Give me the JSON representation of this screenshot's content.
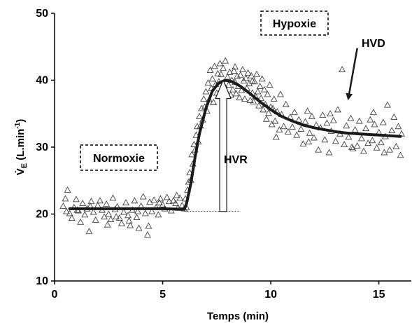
{
  "chart_data": {
    "type": "scatter",
    "xlabel": "Temps (min)",
    "ylabel": "V̇E (L.min⁻¹)",
    "ylabel_main": "V̇",
    "ylabel_sub": "E",
    "ylabel_unit": " (L.min",
    "ylabel_sup": "-1",
    "ylabel_close": ")",
    "xlim": [
      0,
      16.5
    ],
    "ylim": [
      10,
      50
    ],
    "x_ticks": [
      "0",
      "5",
      "10",
      "15"
    ],
    "y_ticks": [
      "10",
      "20",
      "30",
      "40",
      "50"
    ],
    "grid": false,
    "colors": {
      "line": "#1a1a1a",
      "markers": "#444444",
      "axis": "#000000"
    },
    "marker": "open-triangle",
    "annotations": {
      "normoxie": "Normoxie",
      "hypoxie": "Hypoxie",
      "hvr": "HVR",
      "hvd": "HVD"
    },
    "fit_line": {
      "x": [
        0.7,
        2.0,
        3.0,
        4.0,
        5.0,
        6.0,
        6.1,
        6.3,
        6.5,
        6.7,
        7.0,
        7.3,
        7.6,
        7.9,
        8.2,
        8.6,
        9.0,
        9.5,
        10.0,
        10.5,
        11.0,
        11.5,
        12.0,
        12.5,
        13.0,
        13.5,
        14.0,
        14.5,
        15.0,
        15.5,
        16.0
      ],
      "y": [
        20.8,
        20.8,
        20.8,
        20.8,
        20.8,
        20.7,
        21.5,
        24.5,
        28.5,
        32.0,
        35.8,
        38.4,
        39.6,
        40.0,
        39.8,
        39.1,
        38.1,
        36.8,
        35.6,
        34.6,
        33.9,
        33.3,
        32.9,
        32.6,
        32.3,
        32.1,
        32.0,
        31.9,
        31.8,
        31.7,
        31.6
      ]
    },
    "baseline": {
      "x": [
        6.0,
        8.6
      ],
      "y": 20.4
    },
    "hvr_arrow": {
      "x": 7.8,
      "y_from": 20.4,
      "y_to": 40.0
    },
    "hvd_arrow": {
      "x_from": 14.0,
      "y_from": 44.8,
      "x_to": 13.6,
      "y_to": 37.5
    },
    "series": [
      {
        "points": [
          [
            0.4,
            21.2
          ],
          [
            0.5,
            22.3
          ],
          [
            0.6,
            23.6
          ],
          [
            0.7,
            20.1
          ],
          [
            0.8,
            19.4
          ],
          [
            0.9,
            21.0
          ],
          [
            1.0,
            22.2
          ],
          [
            1.1,
            20.5
          ],
          [
            1.2,
            18.8
          ],
          [
            1.3,
            21.6
          ],
          [
            1.4,
            19.9
          ],
          [
            1.5,
            20.8
          ],
          [
            1.6,
            17.4
          ],
          [
            1.7,
            21.9
          ],
          [
            1.8,
            20.3
          ],
          [
            1.9,
            19.1
          ],
          [
            2.0,
            21.3
          ],
          [
            2.1,
            22.0
          ],
          [
            2.2,
            20.6
          ],
          [
            2.3,
            19.6
          ],
          [
            2.4,
            21.5
          ],
          [
            2.5,
            20.0
          ],
          [
            2.6,
            19.2
          ],
          [
            2.7,
            22.4
          ],
          [
            2.8,
            20.7
          ],
          [
            2.9,
            21.1
          ],
          [
            3.0,
            19.4
          ],
          [
            3.1,
            18.6
          ],
          [
            3.2,
            20.3
          ],
          [
            3.3,
            21.7
          ],
          [
            3.4,
            19.8
          ],
          [
            3.5,
            18.3
          ],
          [
            3.6,
            20.6
          ],
          [
            3.7,
            22.0
          ],
          [
            3.8,
            19.5
          ],
          [
            3.9,
            17.9
          ],
          [
            4.0,
            21.2
          ],
          [
            4.1,
            22.6
          ],
          [
            4.2,
            20.1
          ],
          [
            4.3,
            16.9
          ],
          [
            4.4,
            21.8
          ],
          [
            4.5,
            20.4
          ],
          [
            4.6,
            22.1
          ],
          [
            4.7,
            21.0
          ],
          [
            4.8,
            19.9
          ],
          [
            4.9,
            22.3
          ],
          [
            5.0,
            21.4
          ],
          [
            5.1,
            20.8
          ],
          [
            5.2,
            22.5
          ],
          [
            5.3,
            21.9
          ],
          [
            5.4,
            20.5
          ],
          [
            5.5,
            22.0
          ],
          [
            5.6,
            21.6
          ],
          [
            5.7,
            20.9
          ],
          [
            5.8,
            22.4
          ],
          [
            5.9,
            21.3
          ],
          [
            6.0,
            20.8
          ],
          [
            6.05,
            22.3
          ],
          [
            6.1,
            21.0
          ],
          [
            6.15,
            23.6
          ],
          [
            6.2,
            24.8
          ],
          [
            6.25,
            26.2
          ],
          [
            6.3,
            25.1
          ],
          [
            6.35,
            28.9
          ],
          [
            6.4,
            27.5
          ],
          [
            6.45,
            30.4
          ],
          [
            6.5,
            29.6
          ],
          [
            6.55,
            31.8
          ],
          [
            6.6,
            33.1
          ],
          [
            6.65,
            30.8
          ],
          [
            6.7,
            34.6
          ],
          [
            6.75,
            33.2
          ],
          [
            6.8,
            35.8
          ],
          [
            6.85,
            34.1
          ],
          [
            6.9,
            37.2
          ],
          [
            6.95,
            36.0
          ],
          [
            7.0,
            38.3
          ],
          [
            7.05,
            35.4
          ],
          [
            7.1,
            39.6
          ],
          [
            7.15,
            37.1
          ],
          [
            7.2,
            41.5
          ],
          [
            7.25,
            38.8
          ],
          [
            7.3,
            40.2
          ],
          [
            7.35,
            36.7
          ],
          [
            7.4,
            42.1
          ],
          [
            7.45,
            39.4
          ],
          [
            7.5,
            38.1
          ],
          [
            7.55,
            41.0
          ],
          [
            7.6,
            39.8
          ],
          [
            7.65,
            37.6
          ],
          [
            7.7,
            40.9
          ],
          [
            7.75,
            38.6
          ],
          [
            7.8,
            41.8
          ],
          [
            7.85,
            39.2
          ],
          [
            7.9,
            42.9
          ],
          [
            7.95,
            38.2
          ],
          [
            8.0,
            40.5
          ],
          [
            8.05,
            39.3
          ],
          [
            8.1,
            41.2
          ],
          [
            8.15,
            37.8
          ],
          [
            8.2,
            40.0
          ],
          [
            8.25,
            38.6
          ],
          [
            8.3,
            41.4
          ],
          [
            8.35,
            39.7
          ],
          [
            8.4,
            38.0
          ],
          [
            8.45,
            40.6
          ],
          [
            8.5,
            39.1
          ],
          [
            8.55,
            37.4
          ],
          [
            8.6,
            40.8
          ],
          [
            8.65,
            38.5
          ],
          [
            8.7,
            41.6
          ],
          [
            8.75,
            39.9
          ],
          [
            8.8,
            37.2
          ],
          [
            8.85,
            40.3
          ],
          [
            8.9,
            38.8
          ],
          [
            8.95,
            41.1
          ],
          [
            9.0,
            39.5
          ],
          [
            9.05,
            37.0
          ],
          [
            9.1,
            40.7
          ],
          [
            9.15,
            38.1
          ],
          [
            9.2,
            36.8
          ],
          [
            9.25,
            39.8
          ],
          [
            9.3,
            37.6
          ],
          [
            9.35,
            40.9
          ],
          [
            9.4,
            38.3
          ],
          [
            9.45,
            36.2
          ],
          [
            9.5,
            39.1
          ],
          [
            9.55,
            37.3
          ],
          [
            9.6,
            40.2
          ],
          [
            9.65,
            35.6
          ],
          [
            9.7,
            38.6
          ],
          [
            9.75,
            36.4
          ],
          [
            9.8,
            34.2
          ],
          [
            9.85,
            37.9
          ],
          [
            9.9,
            35.1
          ],
          [
            9.95,
            39.3
          ],
          [
            10.0,
            36.0
          ],
          [
            10.05,
            33.4
          ],
          [
            10.1,
            35.8
          ],
          [
            10.15,
            37.2
          ],
          [
            10.2,
            33.9
          ],
          [
            10.3,
            35.3
          ],
          [
            10.4,
            32.6
          ],
          [
            10.5,
            34.9
          ],
          [
            10.6,
            33.1
          ],
          [
            10.7,
            36.4
          ],
          [
            10.8,
            32.3
          ],
          [
            10.9,
            34.5
          ],
          [
            11.0,
            33.0
          ],
          [
            11.1,
            35.2
          ],
          [
            11.2,
            31.8
          ],
          [
            11.3,
            34.1
          ],
          [
            11.4,
            32.7
          ],
          [
            11.5,
            30.5
          ],
          [
            11.6,
            33.8
          ],
          [
            11.7,
            35.4
          ],
          [
            11.8,
            32.1
          ],
          [
            11.9,
            34.6
          ],
          [
            12.0,
            31.4
          ],
          [
            12.1,
            33.3
          ],
          [
            12.2,
            29.6
          ],
          [
            12.3,
            32.9
          ],
          [
            12.4,
            34.8
          ],
          [
            12.5,
            31.1
          ],
          [
            12.6,
            33.6
          ],
          [
            12.7,
            29.2
          ],
          [
            12.8,
            32.4
          ],
          [
            12.9,
            34.0
          ],
          [
            13.0,
            30.9
          ],
          [
            13.1,
            35.6
          ],
          [
            13.2,
            32.0
          ],
          [
            13.3,
            41.6
          ],
          [
            13.4,
            30.4
          ],
          [
            13.5,
            33.2
          ],
          [
            13.6,
            31.5
          ],
          [
            13.7,
            34.3
          ],
          [
            13.8,
            29.8
          ],
          [
            13.9,
            32.6
          ],
          [
            14.0,
            30.2
          ],
          [
            14.1,
            33.9
          ],
          [
            14.2,
            31.3
          ],
          [
            14.3,
            29.4
          ],
          [
            14.4,
            32.8
          ],
          [
            14.5,
            30.6
          ],
          [
            14.6,
            34.1
          ],
          [
            14.7,
            31.0
          ],
          [
            14.8,
            33.4
          ],
          [
            14.9,
            29.9
          ],
          [
            15.0,
            32.2
          ],
          [
            15.1,
            30.7
          ],
          [
            15.2,
            33.7
          ],
          [
            15.3,
            31.6
          ],
          [
            15.4,
            36.3
          ],
          [
            15.5,
            29.6
          ],
          [
            15.6,
            32.5
          ],
          [
            15.7,
            34.5
          ],
          [
            15.8,
            30.1
          ],
          [
            15.9,
            33.1
          ],
          [
            16.0,
            28.8
          ],
          [
            16.05,
            32.0
          ],
          [
            10.25,
            31.5
          ],
          [
            11.75,
            30.8
          ],
          [
            12.75,
            35.0
          ],
          [
            13.75,
            30.0
          ],
          [
            14.75,
            35.2
          ],
          [
            15.25,
            29.2
          ],
          [
            9.15,
            39.9
          ],
          [
            8.35,
            42.0
          ],
          [
            7.65,
            42.5
          ],
          [
            10.45,
            37.9
          ],
          [
            1.05,
            20.6
          ],
          [
            2.45,
            18.4
          ],
          [
            3.45,
            19.0
          ],
          [
            4.85,
            21.7
          ],
          [
            5.65,
            22.8
          ],
          [
            3.85,
            20.4
          ],
          [
            2.85,
            19.6
          ],
          [
            1.65,
            21.2
          ],
          [
            0.55,
            20.4
          ],
          [
            4.35,
            18.2
          ]
        ]
      }
    ]
  }
}
